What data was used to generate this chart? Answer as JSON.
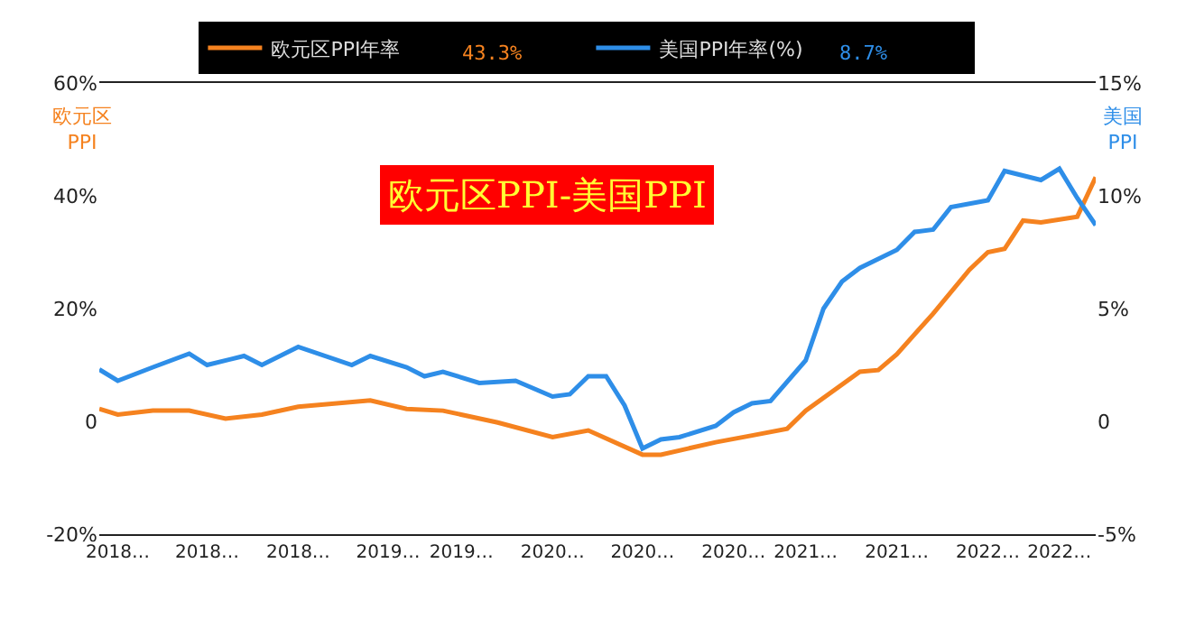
{
  "chart_data": {
    "type": "line",
    "title": "欧元区PPI-美国PPI",
    "ylabel": "欧元区PPI",
    "y2label": "美国PPI",
    "series": [
      {
        "name": "欧元区PPI年率",
        "color": "#f5821f",
        "x": [
          "2018-01",
          "2018-02",
          "2018-04",
          "2018-06",
          "2018-08",
          "2018-10",
          "2018-12",
          "2019-04",
          "2019-06",
          "2019-08",
          "2019-11",
          "2020-02",
          "2020-04",
          "2020-07",
          "2020-08",
          "2020-11",
          "2021-01",
          "2021-03",
          "2021-04",
          "2021-07",
          "2021-08",
          "2021-09",
          "2021-11",
          "2022-01",
          "2022-02",
          "2022-03",
          "2022-04",
          "2022-05",
          "2022-07",
          "2022-08"
        ],
        "values": [
          2.2,
          1.2,
          1.9,
          1.9,
          0.5,
          1.2,
          2.6,
          3.7,
          2.2,
          1.9,
          -0.2,
          -2.8,
          -1.6,
          -5.9,
          -5.9,
          -3.7,
          -2.5,
          -1.3,
          1.9,
          8.8,
          9.1,
          11.9,
          19.1,
          26.9,
          30.0,
          30.6,
          35.6,
          35.3,
          36.3,
          43.3
        ]
      },
      {
        "name": "美国PPI年率(%)",
        "color": "#2e8ee8",
        "axis": "y2",
        "x": [
          "2018-01",
          "2018-02",
          "2018-04",
          "2018-06",
          "2018-07",
          "2018-09",
          "2018-10",
          "2018-12",
          "2019-03",
          "2019-04",
          "2019-06",
          "2019-07",
          "2019-08",
          "2019-10",
          "2019-12",
          "2020-02",
          "2020-03",
          "2020-04",
          "2020-05",
          "2020-06",
          "2020-07",
          "2020-08",
          "2020-09",
          "2020-11",
          "2020-12",
          "2021-01",
          "2021-02",
          "2021-04",
          "2021-05",
          "2021-06",
          "2021-07",
          "2021-09",
          "2021-10",
          "2021-11",
          "2021-12",
          "2022-02",
          "2022-03",
          "2022-05",
          "2022-06",
          "2022-07",
          "2022-08"
        ],
        "values": [
          2.3,
          1.8,
          2.4,
          3.0,
          2.5,
          2.9,
          2.5,
          3.3,
          2.5,
          2.9,
          2.4,
          2.0,
          2.2,
          1.7,
          1.8,
          1.1,
          1.2,
          2.0,
          2.0,
          0.7,
          -1.2,
          -0.8,
          -0.7,
          -0.2,
          0.4,
          0.8,
          0.9,
          2.7,
          5.0,
          6.2,
          6.8,
          7.6,
          8.4,
          8.5,
          9.5,
          9.8,
          11.1,
          10.7,
          11.2,
          9.9,
          8.7
        ]
      }
    ],
    "xlim": [
      "2018-01",
      "2022-08"
    ],
    "xticks": [
      {
        "value": "2018-02",
        "label": "2018…"
      },
      {
        "value": "2018-07",
        "label": "2018…"
      },
      {
        "value": "2018-12",
        "label": "2018…"
      },
      {
        "value": "2019-05",
        "label": "2019…"
      },
      {
        "value": "2019-09",
        "label": "2019…"
      },
      {
        "value": "2020-02",
        "label": "2020…"
      },
      {
        "value": "2020-07",
        "label": "2020…"
      },
      {
        "value": "2020-12",
        "label": "2020…"
      },
      {
        "value": "2021-04",
        "label": "2021…"
      },
      {
        "value": "2021-09",
        "label": "2021…"
      },
      {
        "value": "2022-02",
        "label": "2022…"
      },
      {
        "value": "2022-06",
        "label": "2022…"
      }
    ],
    "ylim": [
      -20,
      60
    ],
    "yticks": [
      {
        "value": -20,
        "label": "-20%"
      },
      {
        "value": 0,
        "label": "0"
      },
      {
        "value": 20,
        "label": "20%"
      },
      {
        "value": 40,
        "label": "40%"
      },
      {
        "value": 60,
        "label": "60%"
      }
    ],
    "y2lim": [
      -5,
      15
    ],
    "y2ticks": [
      {
        "value": -5,
        "label": "-5%"
      },
      {
        "value": 0,
        "label": "0"
      },
      {
        "value": 5,
        "label": "5%"
      },
      {
        "value": 10,
        "label": "10%"
      },
      {
        "value": 15,
        "label": "15%"
      }
    ],
    "annotations": [
      "43.3%",
      "8.7%"
    ],
    "legend": "top",
    "marker": "none",
    "line_style": "solid"
  }
}
